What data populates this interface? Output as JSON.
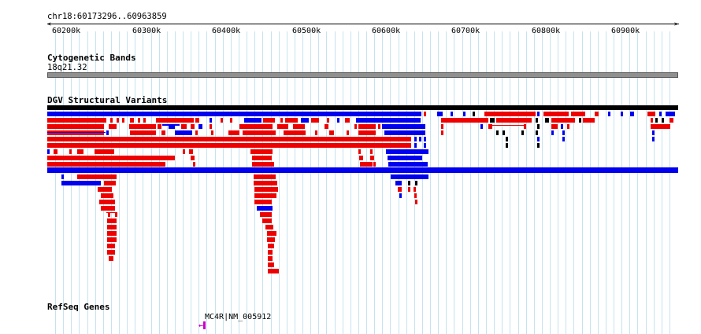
{
  "ruler": {
    "location": "chr18:60173296..60963859",
    "ticks": [
      "60200k",
      "60300k",
      "60400k",
      "60500k",
      "60600k",
      "60700k",
      "60800k",
      "60900k"
    ]
  },
  "tracks": {
    "cytoband": {
      "title": "Cytogenetic Bands",
      "band": "18q21.32"
    },
    "dgv": {
      "title": "DGV Structural Variants"
    },
    "refseq": {
      "title": "RefSeq Genes",
      "gene_label": "MC4R|NM_005912"
    }
  },
  "colors": {
    "gain": "#0000ee",
    "loss": "#ee0000",
    "grid": "#c5e3ef",
    "band": "#909090",
    "gene": "#cc00cc"
  }
}
